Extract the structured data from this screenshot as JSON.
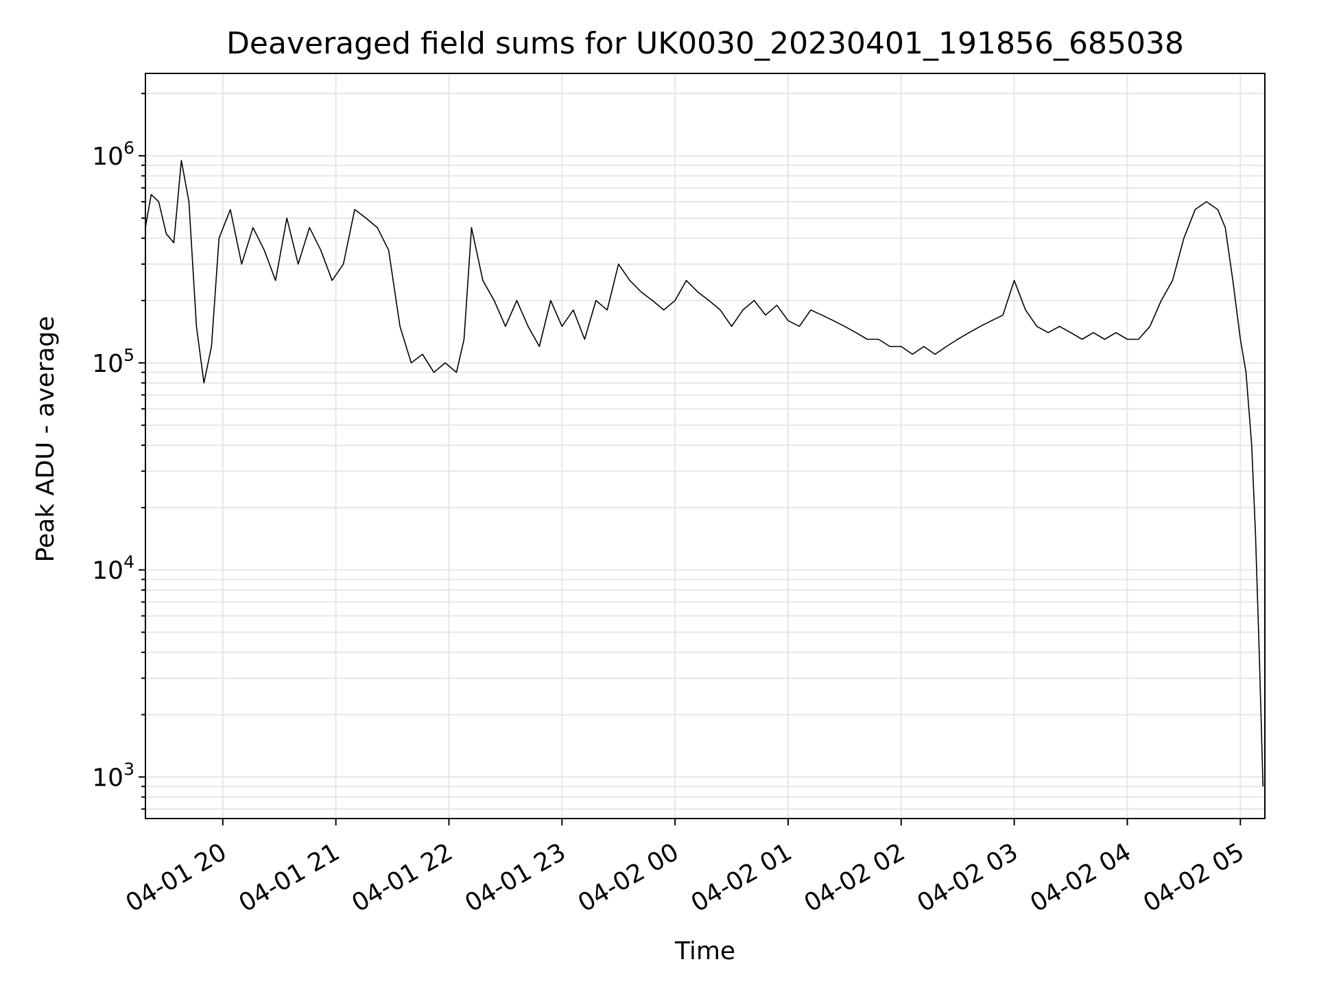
{
  "chart_data": {
    "type": "line",
    "title": "Deaveraged field sums for UK0030_20230401_191856_685038",
    "xlabel": "Time",
    "ylabel": "Peak ADU - average",
    "y_scale": "log",
    "ylim": [
      630,
      2500000
    ],
    "xlim": [
      "2023-04-01T19:18:56",
      "2023-04-02T05:13:00"
    ],
    "grid": true,
    "line_color": "#000000",
    "grid_color": "#e6e6e6",
    "x_ticks": [
      {
        "time": "2023-04-01T20:00:00",
        "label": "04-01 20"
      },
      {
        "time": "2023-04-01T21:00:00",
        "label": "04-01 21"
      },
      {
        "time": "2023-04-01T22:00:00",
        "label": "04-01 22"
      },
      {
        "time": "2023-04-01T23:00:00",
        "label": "04-01 23"
      },
      {
        "time": "2023-04-02T00:00:00",
        "label": "04-02 00"
      },
      {
        "time": "2023-04-02T01:00:00",
        "label": "04-02 01"
      },
      {
        "time": "2023-04-02T02:00:00",
        "label": "04-02 02"
      },
      {
        "time": "2023-04-02T03:00:00",
        "label": "04-02 03"
      },
      {
        "time": "2023-04-02T04:00:00",
        "label": "04-02 04"
      },
      {
        "time": "2023-04-02T05:00:00",
        "label": "04-02 05"
      }
    ],
    "y_ticks": [
      {
        "value": 1000,
        "base": "10",
        "exp": "3"
      },
      {
        "value": 10000,
        "base": "10",
        "exp": "4"
      },
      {
        "value": 100000,
        "base": "10",
        "exp": "5"
      },
      {
        "value": 1000000,
        "base": "10",
        "exp": "6"
      }
    ],
    "series": [
      {
        "points": [
          [
            "2023-04-01T19:18:56",
            450000
          ],
          [
            "2023-04-01T19:22:00",
            650000
          ],
          [
            "2023-04-01T19:26:00",
            600000
          ],
          [
            "2023-04-01T19:30:00",
            420000
          ],
          [
            "2023-04-01T19:34:00",
            380000
          ],
          [
            "2023-04-01T19:38:00",
            950000
          ],
          [
            "2023-04-01T19:42:00",
            600000
          ],
          [
            "2023-04-01T19:46:00",
            150000
          ],
          [
            "2023-04-01T19:50:00",
            80000
          ],
          [
            "2023-04-01T19:54:00",
            120000
          ],
          [
            "2023-04-01T19:58:00",
            400000
          ],
          [
            "2023-04-01T20:04:00",
            550000
          ],
          [
            "2023-04-01T20:10:00",
            300000
          ],
          [
            "2023-04-01T20:16:00",
            450000
          ],
          [
            "2023-04-01T20:22:00",
            350000
          ],
          [
            "2023-04-01T20:28:00",
            250000
          ],
          [
            "2023-04-01T20:34:00",
            500000
          ],
          [
            "2023-04-01T20:40:00",
            300000
          ],
          [
            "2023-04-01T20:46:00",
            450000
          ],
          [
            "2023-04-01T20:52:00",
            350000
          ],
          [
            "2023-04-01T20:58:00",
            250000
          ],
          [
            "2023-04-01T21:04:00",
            300000
          ],
          [
            "2023-04-01T21:10:00",
            550000
          ],
          [
            "2023-04-01T21:16:00",
            500000
          ],
          [
            "2023-04-01T21:22:00",
            450000
          ],
          [
            "2023-04-01T21:28:00",
            350000
          ],
          [
            "2023-04-01T21:34:00",
            150000
          ],
          [
            "2023-04-01T21:40:00",
            100000
          ],
          [
            "2023-04-01T21:46:00",
            110000
          ],
          [
            "2023-04-01T21:52:00",
            90000
          ],
          [
            "2023-04-01T21:58:00",
            100000
          ],
          [
            "2023-04-01T22:04:00",
            90000
          ],
          [
            "2023-04-01T22:08:00",
            130000
          ],
          [
            "2023-04-01T22:12:00",
            450000
          ],
          [
            "2023-04-01T22:18:00",
            250000
          ],
          [
            "2023-04-01T22:24:00",
            200000
          ],
          [
            "2023-04-01T22:30:00",
            150000
          ],
          [
            "2023-04-01T22:36:00",
            200000
          ],
          [
            "2023-04-01T22:42:00",
            150000
          ],
          [
            "2023-04-01T22:48:00",
            120000
          ],
          [
            "2023-04-01T22:54:00",
            200000
          ],
          [
            "2023-04-01T23:00:00",
            150000
          ],
          [
            "2023-04-01T23:06:00",
            180000
          ],
          [
            "2023-04-01T23:12:00",
            130000
          ],
          [
            "2023-04-01T23:18:00",
            200000
          ],
          [
            "2023-04-01T23:24:00",
            180000
          ],
          [
            "2023-04-01T23:30:00",
            300000
          ],
          [
            "2023-04-01T23:36:00",
            250000
          ],
          [
            "2023-04-01T23:42:00",
            220000
          ],
          [
            "2023-04-01T23:48:00",
            200000
          ],
          [
            "2023-04-01T23:54:00",
            180000
          ],
          [
            "2023-04-02T00:00:00",
            200000
          ],
          [
            "2023-04-02T00:06:00",
            250000
          ],
          [
            "2023-04-02T00:12:00",
            220000
          ],
          [
            "2023-04-02T00:18:00",
            200000
          ],
          [
            "2023-04-02T00:24:00",
            180000
          ],
          [
            "2023-04-02T00:30:00",
            150000
          ],
          [
            "2023-04-02T00:36:00",
            180000
          ],
          [
            "2023-04-02T00:42:00",
            200000
          ],
          [
            "2023-04-02T00:48:00",
            170000
          ],
          [
            "2023-04-02T00:54:00",
            190000
          ],
          [
            "2023-04-02T01:00:00",
            160000
          ],
          [
            "2023-04-02T01:06:00",
            150000
          ],
          [
            "2023-04-02T01:12:00",
            180000
          ],
          [
            "2023-04-02T01:18:00",
            170000
          ],
          [
            "2023-04-02T01:24:00",
            160000
          ],
          [
            "2023-04-02T01:30:00",
            150000
          ],
          [
            "2023-04-02T01:36:00",
            140000
          ],
          [
            "2023-04-02T01:42:00",
            130000
          ],
          [
            "2023-04-02T01:48:00",
            130000
          ],
          [
            "2023-04-02T01:54:00",
            120000
          ],
          [
            "2023-04-02T02:00:00",
            120000
          ],
          [
            "2023-04-02T02:06:00",
            110000
          ],
          [
            "2023-04-02T02:12:00",
            120000
          ],
          [
            "2023-04-02T02:18:00",
            110000
          ],
          [
            "2023-04-02T02:24:00",
            120000
          ],
          [
            "2023-04-02T02:30:00",
            130000
          ],
          [
            "2023-04-02T02:36:00",
            140000
          ],
          [
            "2023-04-02T02:42:00",
            150000
          ],
          [
            "2023-04-02T02:48:00",
            160000
          ],
          [
            "2023-04-02T02:54:00",
            170000
          ],
          [
            "2023-04-02T03:00:00",
            250000
          ],
          [
            "2023-04-02T03:06:00",
            180000
          ],
          [
            "2023-04-02T03:12:00",
            150000
          ],
          [
            "2023-04-02T03:18:00",
            140000
          ],
          [
            "2023-04-02T03:24:00",
            150000
          ],
          [
            "2023-04-02T03:30:00",
            140000
          ],
          [
            "2023-04-02T03:36:00",
            130000
          ],
          [
            "2023-04-02T03:42:00",
            140000
          ],
          [
            "2023-04-02T03:48:00",
            130000
          ],
          [
            "2023-04-02T03:54:00",
            140000
          ],
          [
            "2023-04-02T04:00:00",
            130000
          ],
          [
            "2023-04-02T04:06:00",
            130000
          ],
          [
            "2023-04-02T04:12:00",
            150000
          ],
          [
            "2023-04-02T04:18:00",
            200000
          ],
          [
            "2023-04-02T04:24:00",
            250000
          ],
          [
            "2023-04-02T04:30:00",
            400000
          ],
          [
            "2023-04-02T04:36:00",
            550000
          ],
          [
            "2023-04-02T04:42:00",
            600000
          ],
          [
            "2023-04-02T04:48:00",
            550000
          ],
          [
            "2023-04-02T04:52:00",
            450000
          ],
          [
            "2023-04-02T04:56:00",
            250000
          ],
          [
            "2023-04-02T05:00:00",
            130000
          ],
          [
            "2023-04-02T05:03:00",
            90000
          ],
          [
            "2023-04-02T05:06:00",
            40000
          ],
          [
            "2023-04-02T05:08:00",
            15000
          ],
          [
            "2023-04-02T05:10:00",
            4000
          ],
          [
            "2023-04-02T05:12:00",
            900
          ]
        ]
      }
    ]
  }
}
